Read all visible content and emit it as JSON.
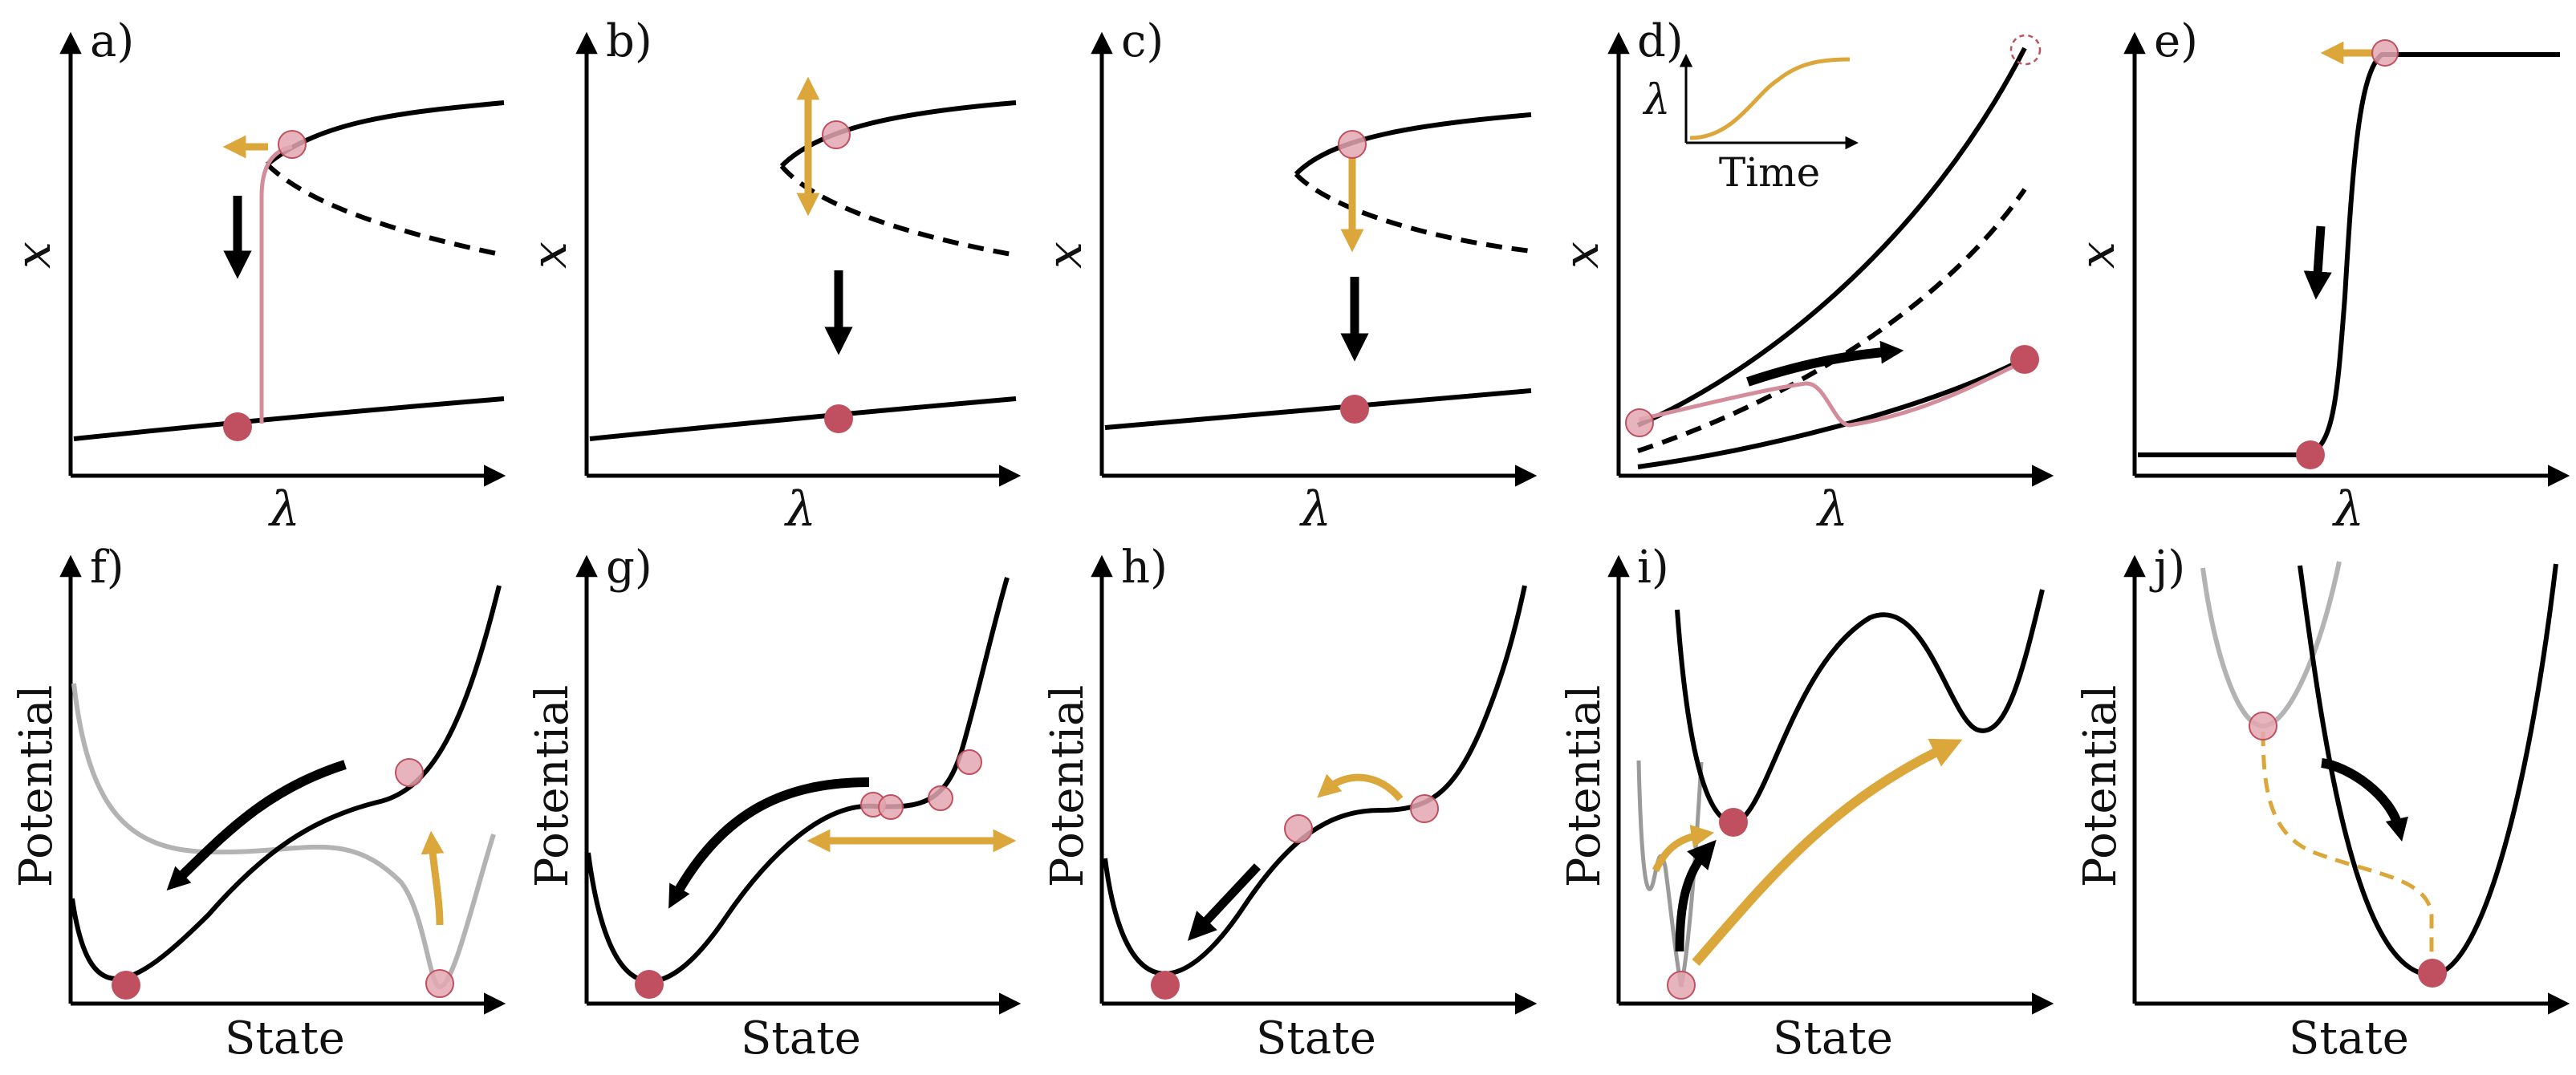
{
  "figure": {
    "colors": {
      "curve": "#000000",
      "old_curve": "#b3b3b3",
      "inset_gray": "#9a9a9a",
      "arrow_orange": "#dba63a",
      "state_dot": "#c0505f",
      "state_dot_faded": "#e3a7b2",
      "trajectory": "#d38c9a"
    },
    "panels": [
      {
        "label": "a)",
        "xlabel": "λ",
        "ylabel": "x"
      },
      {
        "label": "b)",
        "xlabel": "λ",
        "ylabel": "x"
      },
      {
        "label": "c)",
        "xlabel": "λ",
        "ylabel": "x"
      },
      {
        "label": "d)",
        "xlabel": "λ",
        "ylabel": "x",
        "inset": {
          "xlabel": "Time",
          "ylabel": "λ"
        }
      },
      {
        "label": "e)",
        "xlabel": "λ",
        "ylabel": "x"
      },
      {
        "label": "f)",
        "xlabel": "State",
        "ylabel": "Potential"
      },
      {
        "label": "g)",
        "xlabel": "State",
        "ylabel": "Potential"
      },
      {
        "label": "h)",
        "xlabel": "State",
        "ylabel": "Potential"
      },
      {
        "label": "i)",
        "xlabel": "State",
        "ylabel": "Potential"
      },
      {
        "label": "j)",
        "xlabel": "State",
        "ylabel": "Potential"
      }
    ]
  }
}
